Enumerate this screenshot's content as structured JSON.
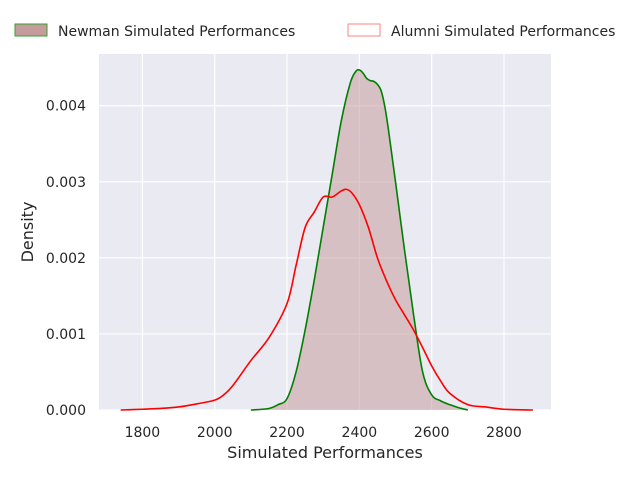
{
  "chart_data": {
    "type": "area",
    "title": "",
    "xlabel": "Simulated Performances",
    "ylabel": "Density",
    "xlim": [
      1680,
      2930
    ],
    "ylim": [
      0,
      0.00468
    ],
    "xticks": [
      1800,
      2000,
      2200,
      2400,
      2600,
      2800
    ],
    "xtick_labels": [
      "1800",
      "2000",
      "2200",
      "2400",
      "2600",
      "2800"
    ],
    "yticks": [
      0,
      0.001,
      0.002,
      0.003,
      0.004
    ],
    "ytick_labels": [
      "0.000",
      "0.001",
      "0.002",
      "0.003",
      "0.004"
    ],
    "grid": true,
    "legend_position": "top, outside plot",
    "series": [
      {
        "name": "Newman Simulated Performances",
        "edge_color": "#008000",
        "fill_color": "#c49c9c",
        "filled": true,
        "x": [
          2100,
          2150,
          2175,
          2200,
          2225,
          2250,
          2275,
          2300,
          2325,
          2350,
          2375,
          2390,
          2400,
          2410,
          2420,
          2430,
          2440,
          2450,
          2460,
          2470,
          2480,
          2500,
          2525,
          2550,
          2575,
          2600,
          2625,
          2650,
          2675,
          2700
        ],
        "y": [
          0,
          2e-05,
          7e-05,
          0.00015,
          0.0005,
          0.00105,
          0.0017,
          0.0024,
          0.0031,
          0.0038,
          0.0043,
          0.00445,
          0.00447,
          0.00443,
          0.00436,
          0.00433,
          0.00432,
          0.00428,
          0.0042,
          0.004,
          0.0037,
          0.003,
          0.0021,
          0.00125,
          0.0005,
          0.0002,
          0.00012,
          7e-05,
          3e-05,
          0
        ]
      },
      {
        "name": "Alumni Simulated Performances",
        "edge_color": "#ff0000",
        "filled": false,
        "x": [
          1740,
          1800,
          1850,
          1900,
          1950,
          2000,
          2025,
          2050,
          2100,
          2150,
          2200,
          2225,
          2250,
          2275,
          2300,
          2325,
          2350,
          2365,
          2380,
          2400,
          2425,
          2450,
          2475,
          2500,
          2525,
          2550,
          2575,
          2600,
          2625,
          2650,
          2700,
          2750,
          2800,
          2880
        ],
        "y": [
          0,
          1e-05,
          2e-05,
          4e-05,
          8e-05,
          0.00013,
          0.0002,
          0.00032,
          0.00065,
          0.00095,
          0.0014,
          0.0019,
          0.0024,
          0.0026,
          0.0028,
          0.0028,
          0.00288,
          0.0029,
          0.00285,
          0.0027,
          0.0024,
          0.002,
          0.0017,
          0.00145,
          0.00125,
          0.00105,
          0.00082,
          0.00058,
          0.00038,
          0.00022,
          7e-05,
          4e-05,
          1e-05,
          0
        ]
      }
    ]
  }
}
